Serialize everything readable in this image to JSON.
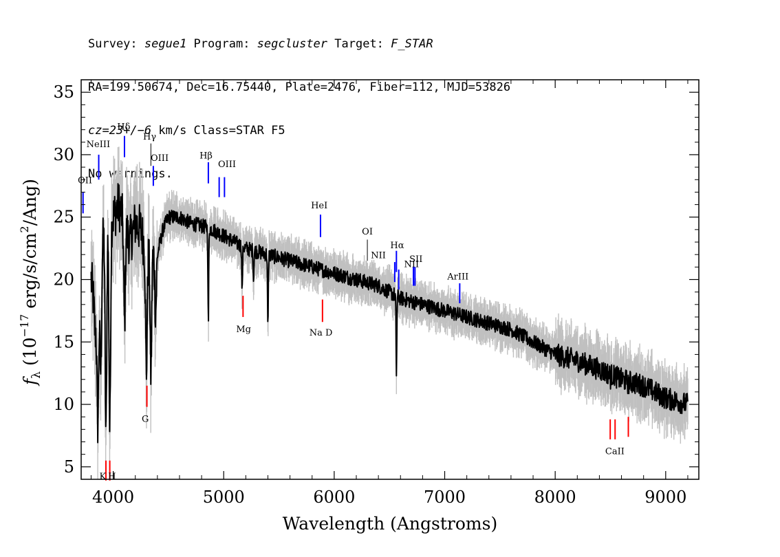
{
  "header": {
    "line1": {
      "survey_label": "Survey: ",
      "survey": "segue1",
      "program_label": " Program: ",
      "program": "segcluster",
      "target_label": " Target: ",
      "target": "F_STAR"
    },
    "line2": "RA=199.50674, Dec=16.75440, Plate=2476, Fiber=112, MJD=53826",
    "line3": {
      "cz": "cz=23+/−6",
      "rest": " km/s Class=STAR F5"
    },
    "line4": "No warnings."
  },
  "chart_data": {
    "type": "line",
    "xlabel": "Wavelength (Angstroms)",
    "ylabel_prefix": "f",
    "ylabel_sub": "λ",
    "ylabel_main": " (10",
    "ylabel_exp": "−17",
    "ylabel_mid": " erg/s/cm",
    "ylabel_exp2": "2",
    "ylabel_end": "/Ang)",
    "xlim": [
      3710,
      9300
    ],
    "ylim": [
      4,
      36
    ],
    "x_ticks": [
      4000,
      5000,
      6000,
      7000,
      8000,
      9000
    ],
    "x_tick_labels": [
      "4000",
      "5000",
      "6000",
      "7000",
      "8000",
      "9000"
    ],
    "y_ticks": [
      5,
      10,
      15,
      20,
      25,
      30,
      35
    ],
    "y_tick_labels": [
      "5",
      "10",
      "15",
      "20",
      "25",
      "30",
      "35"
    ],
    "colors": {
      "flux": "#000000",
      "error": "#c0c0c0",
      "emission": "#0000ff",
      "absorption": "#ff0000",
      "sky": "#000000"
    },
    "continuum": [
      [
        3800,
        20.0
      ],
      [
        3850,
        16.5
      ],
      [
        3880,
        17.5
      ],
      [
        3900,
        23.0
      ],
      [
        3950,
        24.5
      ],
      [
        4000,
        25.0
      ],
      [
        4050,
        26.0
      ],
      [
        4100,
        24.5
      ],
      [
        4150,
        23.0
      ],
      [
        4200,
        24.5
      ],
      [
        4250,
        24.0
      ],
      [
        4300,
        22.0
      ],
      [
        4400,
        22.0
      ],
      [
        4450,
        24.0
      ],
      [
        4500,
        25.0
      ],
      [
        4600,
        25.0
      ],
      [
        4700,
        24.5
      ],
      [
        4800,
        24.3
      ],
      [
        4900,
        24.0
      ],
      [
        5000,
        23.5
      ],
      [
        5200,
        22.5
      ],
      [
        5400,
        22.0
      ],
      [
        5600,
        21.5
      ],
      [
        5800,
        21.0
      ],
      [
        6000,
        20.5
      ],
      [
        6200,
        20.0
      ],
      [
        6400,
        19.5
      ],
      [
        6600,
        18.5
      ],
      [
        6800,
        18.0
      ],
      [
        7000,
        17.5
      ],
      [
        7200,
        17.0
      ],
      [
        7400,
        16.5
      ],
      [
        7600,
        16.0
      ],
      [
        7800,
        15.0
      ],
      [
        8000,
        14.0
      ],
      [
        8200,
        13.5
      ],
      [
        8400,
        12.8
      ],
      [
        8600,
        12.0
      ],
      [
        8800,
        11.5
      ],
      [
        9000,
        10.5
      ],
      [
        9200,
        10.0
      ]
    ],
    "absorption_features": [
      [
        3835,
        16.0
      ],
      [
        3860,
        8.5
      ],
      [
        3889,
        13.0
      ],
      [
        3934,
        7.5
      ],
      [
        3969,
        8.0
      ],
      [
        4102,
        16.5
      ],
      [
        4300,
        12.5
      ],
      [
        4341,
        12.5
      ],
      [
        4384,
        17.5
      ],
      [
        4861,
        16.5
      ],
      [
        5167,
        19.0
      ],
      [
        5270,
        20.0
      ],
      [
        5400,
        16.0
      ],
      [
        6563,
        12.5
      ],
      [
        8498,
        12.0
      ],
      [
        8542,
        12.5
      ],
      [
        8662,
        11.5
      ]
    ],
    "lines": [
      {
        "label": "OII",
        "wave": 3727,
        "ytop": 27.0,
        "ybot": 25.3,
        "kind": "emission",
        "lblx": 3745,
        "lbly": 27.7
      },
      {
        "label": "NeIII",
        "wave": 3869,
        "ytop": 30.0,
        "ybot": 28.0,
        "kind": "emission",
        "lblx": 3865,
        "lbly": 30.6
      },
      {
        "label": "Hδ",
        "wave": 4102,
        "ytop": 31.5,
        "ybot": 29.8,
        "kind": "emission",
        "lblx": 4095,
        "lbly": 32.0
      },
      {
        "label": "Hγ",
        "wave": 4341,
        "ytop": 30.9,
        "ybot": 29.1,
        "kind": "sky",
        "lblx": 4330,
        "lbly": 31.2
      },
      {
        "label": "OIII",
        "wave": 4363,
        "ytop": 29.1,
        "ybot": 27.5,
        "kind": "emission",
        "lblx": 4420,
        "lbly": 29.5
      },
      {
        "label": "Hβ",
        "wave": 4861,
        "ytop": 29.4,
        "ybot": 27.7,
        "kind": "emission",
        "lblx": 4840,
        "lbly": 29.7
      },
      {
        "label": "OIII",
        "wave": 4959,
        "ytop": 28.2,
        "ybot": 26.6,
        "kind": "emission",
        "lblx": "",
        "lbly": ""
      },
      {
        "label": "OIII",
        "wave": 5007,
        "ytop": 28.2,
        "ybot": 26.6,
        "kind": "emission",
        "lblx": 5030,
        "lbly": 29.0
      },
      {
        "label": "HeI",
        "wave": 5876,
        "ytop": 25.2,
        "ybot": 23.4,
        "kind": "emission",
        "lblx": 5865,
        "lbly": 25.7
      },
      {
        "label": "OI",
        "wave": 6300,
        "ytop": 23.2,
        "ybot": 21.5,
        "kind": "sky",
        "lblx": 6300,
        "lbly": 23.6
      },
      {
        "label": "NII",
        "wave": 6548,
        "ytop": 21.4,
        "ybot": 19.8,
        "kind": "emission",
        "lblx": 6400,
        "lbly": 21.7
      },
      {
        "label": "Hα",
        "wave": 6563,
        "ytop": 22.3,
        "ybot": 20.6,
        "kind": "emission",
        "lblx": 6570,
        "lbly": 22.5
      },
      {
        "label": "NII",
        "wave": 6584,
        "ytop": 20.8,
        "ybot": 19.2,
        "kind": "emission",
        "lblx": 6700,
        "lbly": 21.0
      },
      {
        "label": "SII",
        "wave": 6717,
        "ytop": 21.0,
        "ybot": 19.5,
        "kind": "emission",
        "lblx": "",
        "lbly": ""
      },
      {
        "label": "SII",
        "wave": 6731,
        "ytop": 21.0,
        "ybot": 19.5,
        "kind": "emission",
        "lblx": 6740,
        "lbly": 21.4
      },
      {
        "label": "ArIII",
        "wave": 7136,
        "ytop": 19.7,
        "ybot": 18.1,
        "kind": "emission",
        "lblx": 7120,
        "lbly": 20.0
      },
      {
        "label": "K",
        "wave": 3934,
        "ytop": 5.5,
        "ybot": 3.9,
        "kind": "absorption",
        "lblx": 3905,
        "lbly": 4.0
      },
      {
        "label": "H",
        "wave": 3969,
        "ytop": 5.5,
        "ybot": 3.9,
        "kind": "absorption",
        "lblx": 3990,
        "lbly": 4.0
      },
      {
        "label": "G",
        "wave": 4305,
        "ytop": 11.5,
        "ybot": 9.8,
        "kind": "absorption",
        "lblx": 4290,
        "lbly": 8.6
      },
      {
        "label": "Mg",
        "wave": 5175,
        "ytop": 18.7,
        "ybot": 17.0,
        "kind": "absorption",
        "lblx": 5180,
        "lbly": 15.8
      },
      {
        "label": "Na D",
        "wave": 5894,
        "ytop": 18.4,
        "ybot": 16.6,
        "kind": "absorption",
        "lblx": 5880,
        "lbly": 15.5
      },
      {
        "label": "CaII",
        "wave": 8498,
        "ytop": 8.8,
        "ybot": 7.2,
        "kind": "absorption",
        "lblx": "",
        "lbly": ""
      },
      {
        "label": "CaII",
        "wave": 8542,
        "ytop": 8.8,
        "ybot": 7.2,
        "kind": "absorption",
        "lblx": 8540,
        "lbly": 6.0
      },
      {
        "label": "CaII",
        "wave": 8662,
        "ytop": 9.0,
        "ybot": 7.4,
        "kind": "absorption",
        "lblx": "",
        "lbly": ""
      }
    ]
  }
}
